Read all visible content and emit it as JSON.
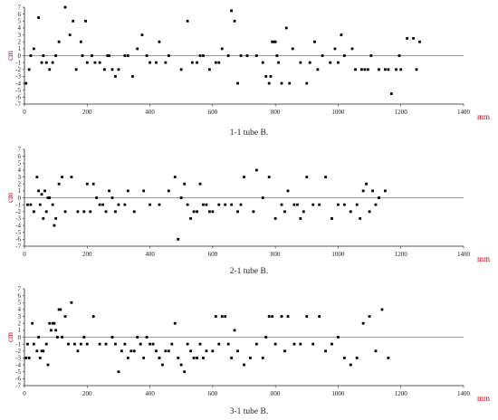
{
  "chart_data": [
    {
      "type": "scatter",
      "caption": "1-1  tube B.",
      "xlabel": "mm",
      "ylabel": "cm",
      "xlim": [
        0,
        1400
      ],
      "ylim": [
        -7,
        7
      ],
      "xticks": [
        0,
        200,
        400,
        600,
        800,
        1000,
        1200,
        1400
      ],
      "yticks": [
        -7,
        -6,
        -5,
        -4,
        -3,
        -2,
        -1,
        0,
        1,
        2,
        3,
        4,
        5,
        6,
        7
      ],
      "x": [
        5,
        15,
        20,
        30,
        45,
        55,
        60,
        70,
        80,
        90,
        100,
        110,
        130,
        145,
        155,
        165,
        180,
        185,
        195,
        200,
        215,
        225,
        240,
        255,
        265,
        270,
        280,
        290,
        300,
        320,
        330,
        345,
        360,
        375,
        390,
        400,
        420,
        430,
        450,
        460,
        500,
        520,
        535,
        550,
        560,
        570,
        590,
        610,
        620,
        630,
        650,
        660,
        670,
        680,
        690,
        710,
        740,
        760,
        770,
        780,
        785,
        790,
        795,
        800,
        805,
        810,
        820,
        835,
        845,
        855,
        880,
        900,
        910,
        925,
        935,
        950,
        975,
        990,
        1000,
        1010,
        1020,
        1045,
        1055,
        1075,
        1085,
        1095,
        1105,
        1130,
        1150,
        1160,
        1170,
        1185,
        1195,
        1200,
        1220,
        1240,
        1250,
        1260
      ],
      "y": [
        -4,
        -2,
        0,
        1,
        5.5,
        -1,
        0,
        -1,
        -2,
        -1,
        0,
        2,
        7,
        3,
        5,
        -2,
        2,
        0,
        5,
        -1,
        0,
        -1,
        -1,
        -2,
        0,
        0,
        -2,
        -3,
        -2,
        0,
        0,
        -3,
        1,
        3,
        0,
        -1,
        -1,
        2,
        -1,
        0,
        -2,
        5,
        -1,
        -1,
        0,
        0,
        -2,
        -1,
        -1,
        1,
        0,
        6.5,
        5,
        -4,
        0,
        0,
        0,
        -1,
        -3,
        -4,
        -3,
        2,
        2,
        2,
        0,
        -1,
        -4,
        4,
        -4,
        1,
        -1,
        -4,
        -1,
        2,
        -2,
        0,
        -1,
        1,
        -1,
        3,
        0,
        1,
        -2,
        -2,
        -2,
        -2,
        0,
        -2,
        -2,
        -2,
        -5.5,
        -2,
        0,
        -2,
        2.5,
        2.5,
        -2,
        2
      ]
    },
    {
      "type": "scatter",
      "caption": "2-1 tube B.",
      "xlabel": "mm",
      "ylabel": "cm",
      "xlim": [
        0,
        1400
      ],
      "ylim": [
        -7,
        7
      ],
      "xticks": [
        0,
        200,
        400,
        600,
        800,
        1000,
        1200,
        1400
      ],
      "yticks": [
        -7,
        -6,
        -5,
        -4,
        -3,
        -2,
        -1,
        0,
        1,
        2,
        3,
        4,
        5,
        6,
        7
      ],
      "x": [
        10,
        20,
        30,
        40,
        45,
        50,
        55,
        60,
        65,
        70,
        75,
        80,
        90,
        95,
        100,
        110,
        120,
        130,
        150,
        170,
        190,
        200,
        210,
        220,
        230,
        240,
        250,
        260,
        270,
        280,
        290,
        300,
        320,
        330,
        350,
        380,
        400,
        430,
        460,
        480,
        490,
        500,
        510,
        520,
        530,
        540,
        550,
        560,
        570,
        580,
        590,
        600,
        620,
        640,
        660,
        680,
        690,
        700,
        730,
        740,
        760,
        780,
        800,
        820,
        830,
        840,
        860,
        870,
        880,
        890,
        900,
        920,
        940,
        960,
        980,
        1000,
        1020,
        1040,
        1060,
        1070,
        1080,
        1090,
        1100,
        1110,
        1120,
        1130,
        1150
      ],
      "y": [
        -1,
        -1,
        -2,
        3,
        1,
        -1,
        0.5,
        -3,
        1,
        -2,
        0,
        0,
        -1,
        -4,
        -3,
        2,
        3,
        -2,
        3,
        -2,
        -2,
        2,
        -2,
        2,
        0,
        -1,
        -1,
        -2,
        1,
        0,
        -2,
        -1,
        -1,
        1,
        -2,
        1,
        -1,
        -1,
        1,
        3,
        -6,
        0,
        2,
        -1,
        -3,
        -2,
        -2,
        2,
        -1,
        -1,
        -2,
        -2,
        -1,
        -1,
        -1,
        -2,
        -1,
        3,
        -2,
        4,
        0,
        3,
        -3,
        -1,
        -2,
        1,
        -1,
        -1,
        -3,
        -2,
        3,
        -1,
        -1,
        3,
        -3,
        -1,
        -1,
        -2,
        -1,
        -3,
        1,
        2,
        -2,
        1,
        -1,
        0,
        1
      ]
    },
    {
      "type": "scatter",
      "caption": "3-1 tube B.",
      "xlabel": "mm",
      "ylabel": "cm",
      "xlim": [
        0,
        1400
      ],
      "ylim": [
        -7,
        7
      ],
      "xticks": [
        0,
        200,
        400,
        600,
        800,
        1000,
        1200,
        1400
      ],
      "yticks": [
        -7,
        -6,
        -5,
        -4,
        -3,
        -2,
        -1,
        0,
        1,
        2,
        3,
        4,
        5,
        6,
        7
      ],
      "x": [
        5,
        10,
        15,
        25,
        30,
        40,
        45,
        50,
        55,
        60,
        70,
        75,
        80,
        85,
        90,
        95,
        100,
        105,
        110,
        115,
        120,
        130,
        140,
        150,
        160,
        170,
        180,
        190,
        200,
        220,
        240,
        260,
        280,
        290,
        300,
        310,
        320,
        330,
        340,
        350,
        360,
        370,
        380,
        390,
        400,
        410,
        420,
        430,
        440,
        450,
        460,
        470,
        480,
        490,
        500,
        510,
        520,
        530,
        540,
        550,
        560,
        570,
        580,
        600,
        610,
        620,
        630,
        640,
        650,
        660,
        670,
        680,
        700,
        720,
        740,
        760,
        770,
        780,
        790,
        800,
        820,
        830,
        840,
        860,
        880,
        900,
        920,
        940,
        960,
        980,
        1000,
        1020,
        1040,
        1060,
        1080,
        1100,
        1120,
        1140,
        1160
      ],
      "y": [
        -3,
        -1,
        -3,
        2,
        -1,
        -2,
        0,
        -3,
        -2,
        -2,
        -1,
        -4,
        2,
        1,
        2,
        2,
        1,
        0,
        4,
        4,
        0,
        3,
        -1,
        5,
        -1,
        -2,
        -1,
        0,
        -1,
        3,
        -1,
        -1,
        0,
        -1,
        -5,
        -2,
        -1,
        -3,
        -2,
        -2,
        0,
        -1,
        -3,
        0,
        -1,
        -1,
        -2,
        -3,
        -4,
        -2,
        -2,
        -1,
        2,
        -3,
        -4,
        -5,
        -1,
        -2,
        -3,
        -3,
        -1,
        -3,
        -2,
        -2,
        3,
        -1,
        3,
        3,
        -1,
        -3,
        1,
        -2,
        -4,
        -3,
        -1,
        -3,
        0,
        3,
        3,
        -1,
        3,
        -2,
        3,
        -1,
        -1,
        3,
        -1,
        3,
        -2,
        -1,
        0,
        -3,
        -4,
        -3,
        2,
        3,
        -2,
        4,
        -3
      ]
    }
  ]
}
